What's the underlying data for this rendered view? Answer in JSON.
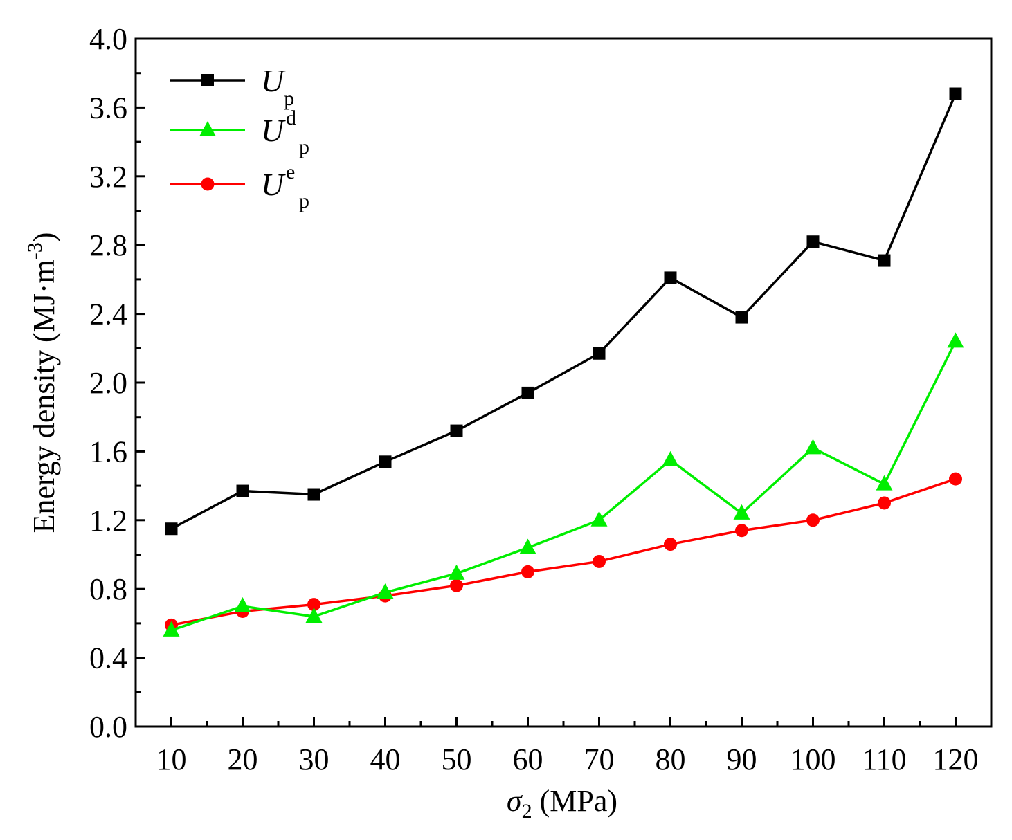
{
  "chart_data": {
    "type": "line",
    "x": [
      10,
      20,
      30,
      40,
      50,
      60,
      70,
      80,
      90,
      100,
      110,
      120
    ],
    "x_ticks": [
      "10",
      "20",
      "30",
      "40",
      "50",
      "60",
      "70",
      "80",
      "90",
      "100",
      "110",
      "120"
    ],
    "y_ticks": [
      "0.0",
      "0.4",
      "0.8",
      "1.2",
      "1.6",
      "2.0",
      "2.4",
      "2.8",
      "3.2",
      "3.6",
      "4.0"
    ],
    "xlim": [
      5,
      125
    ],
    "ylim": [
      0,
      4.0
    ],
    "xlabel": "σ2 (MPa)",
    "xlabel_main": "σ",
    "xlabel_sub": "2",
    "xlabel_rest": " (MPa)",
    "ylabel": "Energy density (MJ·m-3)",
    "ylabel_main": "Energy density (MJ·m",
    "ylabel_sup": "-3",
    "ylabel_end": ")",
    "legend_position": "top-left",
    "series": [
      {
        "name": "Up",
        "symbol": "U",
        "sup": "",
        "sub": "p",
        "marker": "square",
        "color": "#000000",
        "values": [
          1.15,
          1.37,
          1.35,
          1.54,
          1.72,
          1.94,
          2.17,
          2.61,
          2.38,
          2.82,
          2.71,
          3.68
        ]
      },
      {
        "name": "Udp",
        "symbol": "U",
        "sup": "d",
        "sub": "p",
        "marker": "triangle",
        "color": "#00ee00",
        "values": [
          0.56,
          0.7,
          0.64,
          0.78,
          0.89,
          1.04,
          1.2,
          1.55,
          1.24,
          1.62,
          1.41,
          2.24
        ]
      },
      {
        "name": "Uep",
        "symbol": "U",
        "sup": "e",
        "sub": "p",
        "marker": "circle",
        "color": "#ff0000",
        "values": [
          0.59,
          0.67,
          0.71,
          0.76,
          0.82,
          0.9,
          0.96,
          1.06,
          1.14,
          1.2,
          1.3,
          1.44
        ]
      }
    ]
  }
}
